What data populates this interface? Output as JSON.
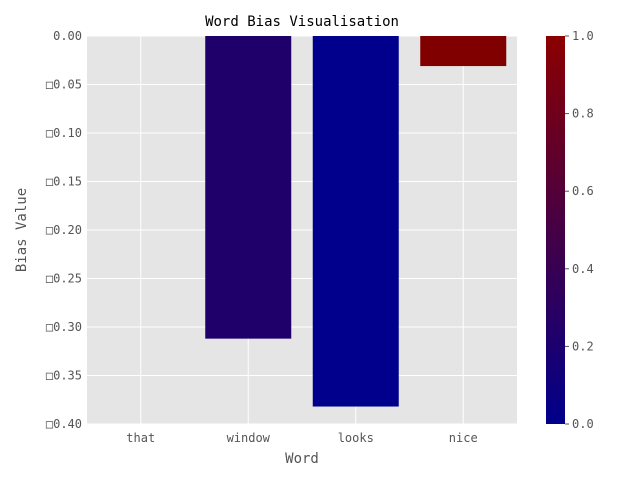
{
  "chart_data": {
    "type": "bar",
    "title": "Word Bias Visualisation",
    "xlabel": "Word",
    "ylabel": "Bias Value",
    "categories": [
      "that",
      "window",
      "looks",
      "nice"
    ],
    "values": [
      0.0,
      -0.312,
      -0.382,
      -0.031
    ],
    "bar_colors": [
      "#000080",
      "#1f006a",
      "#00008c",
      "#800000"
    ],
    "ylim": [
      -0.4,
      0.0
    ],
    "yticks": [
      0.0,
      -0.05,
      -0.1,
      -0.15,
      -0.2,
      -0.25,
      -0.3,
      -0.35,
      -0.4
    ],
    "ytick_labels": [
      "0.00",
      "□0.05",
      "□0.10",
      "□0.15",
      "□0.20",
      "□0.25",
      "□0.30",
      "□0.35",
      "□0.40"
    ],
    "grid": true,
    "colorbar": {
      "range": [
        0.0,
        1.0
      ],
      "ticks": [
        0.0,
        0.2,
        0.4,
        0.6,
        0.8,
        1.0
      ],
      "tick_labels": [
        "0.0",
        "0.2",
        "0.4",
        "0.6",
        "0.8",
        "1.0"
      ],
      "colors": [
        "#00008b",
        "#8b0000"
      ]
    }
  }
}
